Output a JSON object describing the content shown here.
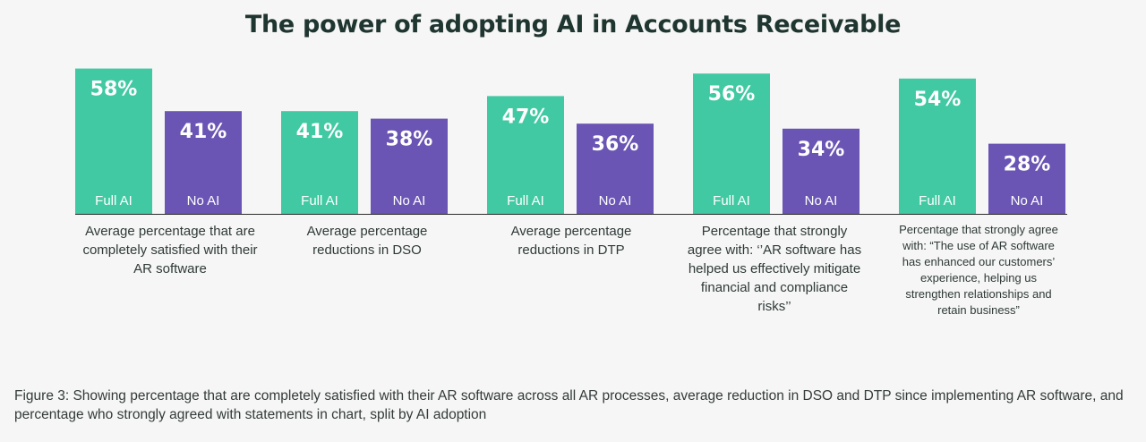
{
  "chart_data": {
    "type": "bar",
    "title": "The power of adopting AI in Accounts Receivable",
    "series": [
      {
        "name": "Full AI",
        "color": "#40c9a2",
        "values": [
          58,
          41,
          47,
          56,
          54
        ]
      },
      {
        "name": "No AI",
        "color": "#6a54b4",
        "values": [
          41,
          38,
          36,
          34,
          28
        ]
      }
    ],
    "categories": [
      "Average percentage that are completely satisfied with their AR software",
      "Average percentage reductions in DSO",
      "Average percentage reductions in DTP",
      "Percentage that strongly agree with: ‘’AR software has helped us effectively mitigate financial and compliance risks’’",
      "Percentage that strongly agree with: “The use of AR software has enhanced our customers’ experience, helping us strengthen relationships and retain business”"
    ],
    "value_labels": [
      [
        "58%",
        "41%",
        "47%",
        "56%",
        "54%"
      ],
      [
        "41%",
        "38%",
        "36%",
        "34%",
        "28%"
      ]
    ],
    "grid": false,
    "legend": "none"
  },
  "caption": "Figure 3: Showing percentage that are completely satisfied with their AR software across all AR processes, average reduction in DSO and DTP since implementing AR software, and percentage who strongly agreed with statements in chart, split by AI adoption"
}
